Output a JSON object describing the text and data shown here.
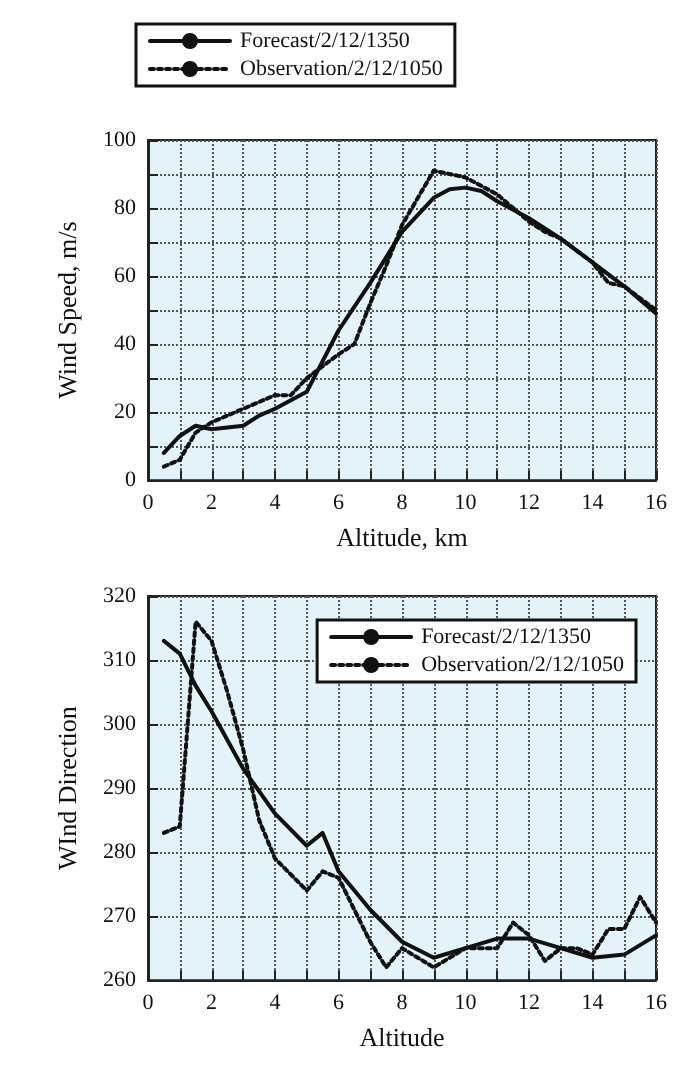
{
  "chart_data": [
    {
      "type": "line",
      "xlabel": "Altitude, km",
      "ylabel": "Wind Speed, m/s",
      "xlim": [
        0,
        16
      ],
      "ylim": [
        0,
        100
      ],
      "xticks": [
        0,
        {
          "value": 1,
          "label": null
        },
        2,
        {
          "value": 3,
          "label": null
        },
        4,
        {
          "value": 5,
          "label": null
        },
        6,
        {
          "value": 7,
          "label": null
        },
        8,
        {
          "value": 9,
          "label": null
        },
        10,
        {
          "value": 11,
          "label": null
        },
        12,
        {
          "value": 13,
          "label": null
        },
        14,
        {
          "value": 15,
          "label": null
        },
        16
      ],
      "yticks": [
        0,
        {
          "value": 10,
          "label": null
        },
        20,
        {
          "value": 30,
          "label": null
        },
        40,
        {
          "value": 50,
          "label": null
        },
        60,
        {
          "value": 70,
          "label": null
        },
        80,
        {
          "value": 90,
          "label": null
        },
        100
      ],
      "grid": true,
      "legend": "top",
      "marker": "none",
      "series": [
        {
          "name": "Forecast/2/12/1350",
          "color": "#111111",
          "line_style": "solid",
          "x": [
            0.5,
            1,
            1.5,
            2,
            3,
            3.5,
            4,
            5,
            5.5,
            6,
            7,
            8,
            9,
            9.5,
            10,
            10.5,
            11,
            12,
            13,
            14,
            15,
            16
          ],
          "values": [
            8,
            13,
            16,
            15,
            16,
            19,
            21,
            26,
            35,
            44,
            58,
            73,
            83,
            85.5,
            86,
            85,
            82,
            77,
            71,
            64,
            57,
            49
          ]
        },
        {
          "name": "Observation/2/12/1050",
          "color": "#111111",
          "line_style": "dotted",
          "x": [
            0.5,
            1,
            1.5,
            2,
            3,
            4,
            4.5,
            5,
            6,
            6.5,
            7,
            7.5,
            8,
            9,
            10,
            11,
            12,
            12.5,
            13,
            14,
            14.5,
            15,
            16
          ],
          "values": [
            4,
            6,
            14,
            17,
            21,
            25,
            25,
            30,
            37,
            40,
            52,
            63,
            75,
            91,
            89,
            84,
            76,
            73,
            71,
            64,
            58,
            57,
            50
          ]
        }
      ]
    },
    {
      "type": "line",
      "xlabel": "Altitude",
      "ylabel": "WInd Direction",
      "xlim": [
        0,
        16
      ],
      "ylim": [
        260,
        320
      ],
      "xticks": [
        0,
        {
          "value": 1,
          "label": null
        },
        2,
        {
          "value": 3,
          "label": null
        },
        4,
        {
          "value": 5,
          "label": null
        },
        6,
        {
          "value": 7,
          "label": null
        },
        8,
        {
          "value": 9,
          "label": null
        },
        10,
        {
          "value": 11,
          "label": null
        },
        12,
        {
          "value": 13,
          "label": null
        },
        14,
        {
          "value": 15,
          "label": null
        },
        16
      ],
      "yticks": [
        260,
        270,
        280,
        290,
        300,
        310,
        320
      ],
      "grid": true,
      "legend": "top right",
      "marker": "none",
      "series": [
        {
          "name": "Forecast/2/12/1350",
          "color": "#111111",
          "line_style": "solid",
          "x": [
            0.5,
            1,
            1.5,
            2,
            3,
            4,
            5,
            5.5,
            6,
            7,
            8,
            9,
            10,
            11,
            12,
            13,
            14,
            15,
            16
          ],
          "values": [
            313,
            311,
            306,
            302,
            293,
            286,
            281,
            283,
            277,
            271,
            266,
            263.5,
            265,
            266.5,
            266.5,
            265,
            263.5,
            264,
            267
          ]
        },
        {
          "name": "Observation/2/12/1050",
          "color": "#111111",
          "line_style": "dotted",
          "x": [
            0.5,
            1,
            1.5,
            2,
            2.5,
            3,
            3.5,
            4,
            5,
            5.5,
            6,
            7,
            7.5,
            8,
            9,
            10,
            11,
            11.5,
            12,
            12.5,
            13,
            13.5,
            14,
            14.5,
            15,
            15.5,
            16
          ],
          "values": [
            283,
            284,
            316,
            313,
            305,
            296,
            285,
            279,
            274,
            277,
            276,
            266,
            262,
            265,
            262,
            265,
            265,
            269,
            267,
            263,
            265,
            265,
            264,
            268,
            268,
            273,
            269
          ]
        }
      ]
    }
  ]
}
